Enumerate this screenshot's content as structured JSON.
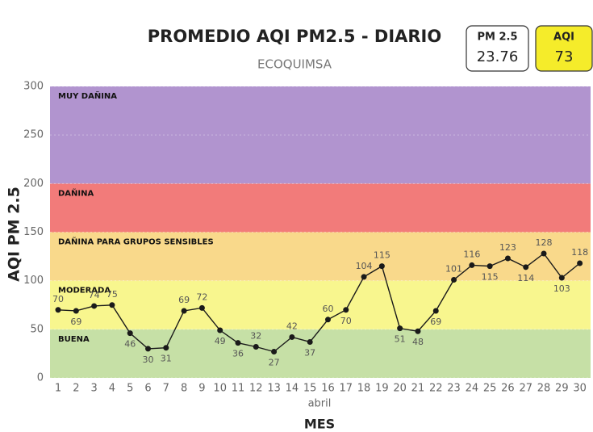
{
  "chart_data": {
    "type": "line",
    "title": "PROMEDIO AQI PM2.5 - DIARIO",
    "subtitle": "ECOQUIMSA",
    "cards": [
      {
        "label": "PM 2.5",
        "value": 23.76,
        "color": "#ffffff"
      },
      {
        "label": "AQI",
        "value": 73,
        "color": "#f5ec2a"
      }
    ],
    "y_label": "AQI PM 2.5",
    "x_label": "MES",
    "x_sublabel": "abril",
    "bands": [
      {
        "name": "BUENA",
        "from": 0,
        "to": 50,
        "color": "#c6e0a6"
      },
      {
        "name": "MODERADA",
        "from": 50,
        "to": 100,
        "color": "#f8f68e"
      },
      {
        "name": "DAÑINA PARA GRUPOS SENSIBLES",
        "from": 100,
        "to": 150,
        "color": "#f9d98b"
      },
      {
        "name": "DAÑINA",
        "from": 150,
        "to": 200,
        "color": "#f27b7a"
      },
      {
        "name": "MUY DAÑINA",
        "from": 200,
        "to": 300,
        "color": "#b194cf"
      }
    ],
    "x": [
      1,
      2,
      3,
      4,
      5,
      6,
      7,
      8,
      9,
      10,
      11,
      12,
      13,
      14,
      15,
      16,
      17,
      18,
      19,
      20,
      21,
      22,
      23,
      24,
      25,
      26,
      27,
      28,
      29,
      30
    ],
    "values": [
      70,
      69,
      74,
      75,
      46,
      30,
      31,
      69,
      72,
      49,
      36,
      32,
      27,
      42,
      37,
      60,
      70,
      104,
      115,
      51,
      48,
      69,
      101,
      116,
      115,
      123,
      114,
      128,
      103,
      118
    ],
    "color": "#1a1a1a",
    "xlim": [
      0.55,
      30.6
    ],
    "xticks": [
      1,
      2,
      3,
      4,
      5,
      6,
      7,
      8,
      9,
      10,
      11,
      12,
      13,
      14,
      15,
      16,
      17,
      18,
      19,
      20,
      21,
      22,
      23,
      24,
      25,
      26,
      27,
      28,
      29,
      30
    ],
    "ylim": [
      0,
      300
    ],
    "yticks": [
      0,
      50,
      100,
      150,
      200,
      250,
      300
    ],
    "grid": true
  }
}
